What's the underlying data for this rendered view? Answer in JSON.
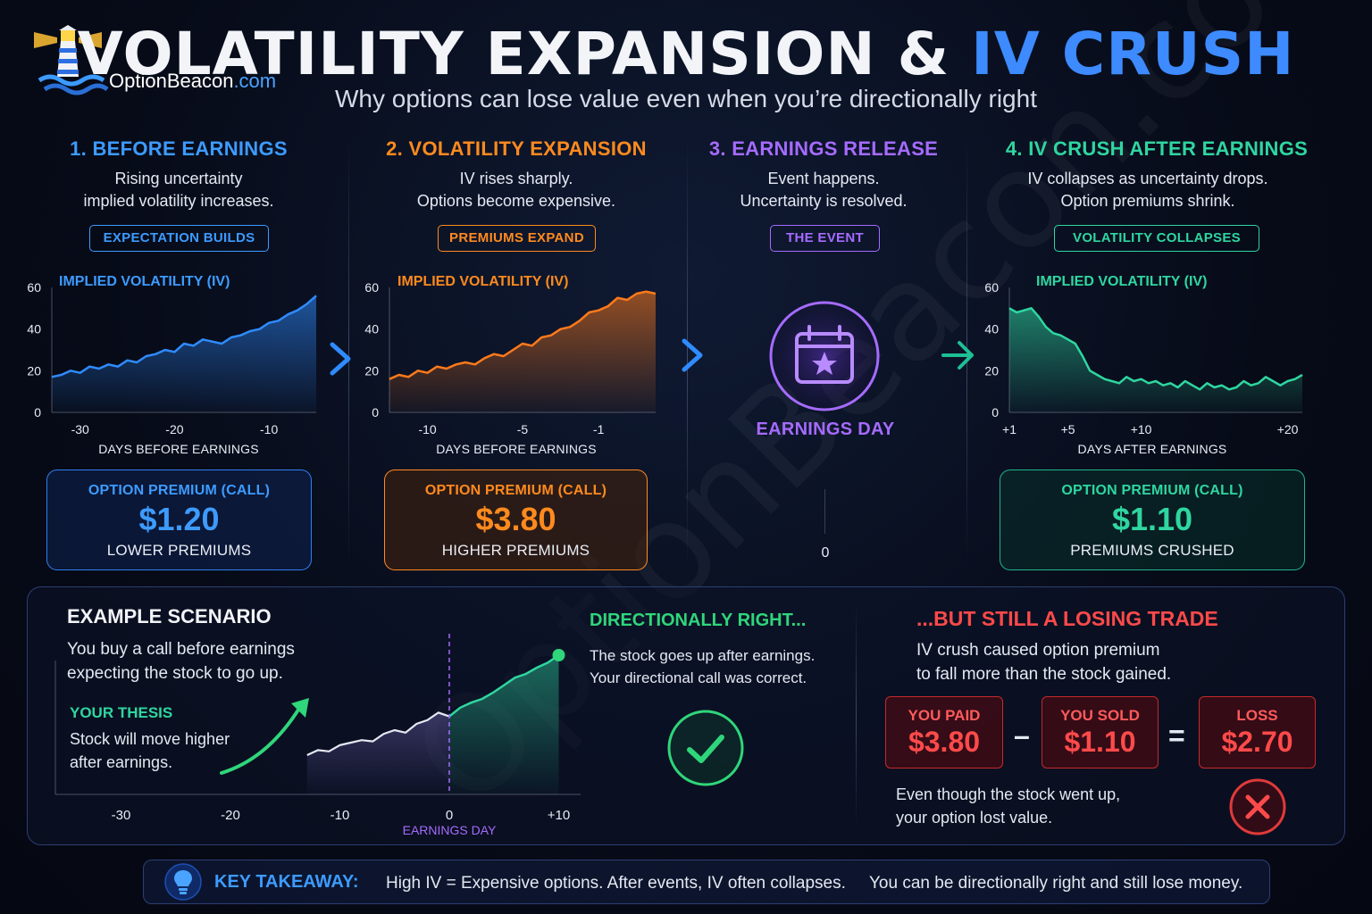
{
  "brand": {
    "name": "OptionBeacon",
    "tld": ".com",
    "watermark": "OptionBeacon.com"
  },
  "header": {
    "title_part1": "VOLATILITY EXPANSION & ",
    "title_part2": "IV CRUSH",
    "subtitle": "Why options can lose value even when you’re directionally right"
  },
  "colors": {
    "blue": "#3d9bff",
    "orange": "#ff8a1e",
    "purple": "#a56bff",
    "green": "#2fd6a0",
    "red": "#ff4a4a"
  },
  "steps": [
    {
      "title": "1. BEFORE EARNINGS",
      "desc_line1": "Rising uncertainty",
      "desc_line2": "implied volatility increases.",
      "pill": "EXPECTATION BUILDS",
      "chart_label": "IMPLIED VOLATILITY (IV)",
      "xlabel": "DAYS BEFORE EARNINGS",
      "card": {
        "label": "OPTION PREMIUM (CALL)",
        "value": "$1.20",
        "note": "LOWER PREMIUMS"
      }
    },
    {
      "title": "2. VOLATILITY EXPANSION",
      "desc_line1": "IV rises sharply.",
      "desc_line2": "Options become expensive.",
      "pill": "PREMIUMS EXPAND",
      "chart_label": "IMPLIED VOLATILITY (IV)",
      "xlabel": "DAYS BEFORE EARNINGS",
      "card": {
        "label": "OPTION PREMIUM (CALL)",
        "value": "$3.80",
        "note": "HIGHER PREMIUMS"
      }
    },
    {
      "title": "3. EARNINGS RELEASE",
      "desc_line1": "Event happens.",
      "desc_line2": "Uncertainty is resolved.",
      "pill": "THE EVENT",
      "event_label": "EARNINGS DAY",
      "zero_tick": "0"
    },
    {
      "title": "4. IV CRUSH AFTER EARNINGS",
      "desc_line1": "IV collapses as uncertainty drops.",
      "desc_line2": "Option premiums shrink.",
      "pill": "VOLATILITY COLLAPSES",
      "chart_label": "IMPLIED VOLATILITY (IV)",
      "xlabel": "DAYS AFTER EARNINGS",
      "card": {
        "label": "OPTION PREMIUM (CALL)",
        "value": "$1.10",
        "note": "PREMIUMS CRUSHED"
      }
    }
  ],
  "chart_data": [
    {
      "type": "area",
      "title": "IMPLIED VOLATILITY (IV)",
      "xlabel": "DAYS BEFORE EARNINGS",
      "xlim": [
        -33,
        -5
      ],
      "ylim": [
        0,
        60
      ],
      "yticks": [
        0,
        20,
        40,
        60
      ],
      "xticks": [
        -30,
        -20,
        -10
      ],
      "x": [
        -33,
        -32,
        -31,
        -30,
        -29,
        -28,
        -27,
        -26,
        -25,
        -24,
        -23,
        -22,
        -21,
        -20,
        -19,
        -18,
        -17,
        -16,
        -15,
        -14,
        -13,
        -12,
        -11,
        -10,
        -9,
        -8,
        -7,
        -6,
        -5
      ],
      "y": [
        17,
        18,
        20,
        19,
        22,
        21,
        23,
        22,
        25,
        24,
        27,
        28,
        30,
        29,
        33,
        32,
        35,
        34,
        33,
        36,
        37,
        39,
        40,
        43,
        44,
        47,
        49,
        52,
        56
      ]
    },
    {
      "type": "area",
      "title": "IMPLIED VOLATILITY (IV)",
      "xlabel": "DAYS BEFORE EARNINGS",
      "xlim": [
        -12,
        2
      ],
      "ylim": [
        0,
        60
      ],
      "yticks": [
        0,
        20,
        40,
        60
      ],
      "xticks": [
        -10,
        -5,
        -1
      ],
      "x": [
        -12,
        -11.5,
        -11,
        -10.5,
        -10,
        -9.5,
        -9,
        -8.5,
        -8,
        -7.5,
        -7,
        -6.5,
        -6,
        -5.5,
        -5,
        -4.5,
        -4,
        -3.5,
        -3,
        -2.5,
        -2,
        -1.5,
        -1,
        -0.5,
        0,
        0.5,
        1,
        1.5,
        2
      ],
      "y": [
        16,
        18,
        17,
        20,
        19,
        22,
        21,
        23,
        24,
        23,
        26,
        28,
        27,
        30,
        33,
        32,
        36,
        37,
        40,
        41,
        44,
        48,
        49,
        51,
        55,
        54,
        57,
        58,
        57
      ]
    },
    {
      "type": "area",
      "title": "IMPLIED VOLATILITY (IV)",
      "xlabel": "DAYS AFTER EARNINGS",
      "xlim": [
        1,
        21
      ],
      "ylim": [
        0,
        60
      ],
      "yticks": [
        0,
        20,
        40,
        60
      ],
      "xticks": [
        1,
        5,
        10,
        20
      ],
      "xtick_labels": [
        "+1",
        "+5",
        "+10",
        "+20"
      ],
      "x": [
        1,
        1.5,
        2,
        2.5,
        3,
        3.5,
        4,
        4.5,
        5,
        5.5,
        6,
        6.5,
        7,
        7.5,
        8,
        8.5,
        9,
        9.5,
        10,
        10.5,
        11,
        11.5,
        12,
        12.5,
        13,
        13.5,
        14,
        14.5,
        15,
        15.5,
        16,
        16.5,
        17,
        17.5,
        18,
        18.5,
        19,
        19.5,
        20,
        20.5,
        21
      ],
      "y": [
        50,
        48,
        49,
        50,
        46,
        41,
        38,
        37,
        35,
        33,
        27,
        20,
        18,
        16,
        15,
        14,
        17,
        15,
        16,
        14,
        15,
        13,
        14,
        12,
        15,
        13,
        11,
        14,
        12,
        13,
        11,
        12,
        15,
        13,
        14,
        17,
        15,
        13,
        15,
        16,
        18
      ]
    },
    {
      "type": "line",
      "title": "EXAMPLE SCENARIO",
      "xlim": [
        -36,
        12
      ],
      "xticks": [
        -30,
        -20,
        -10,
        0,
        10
      ],
      "xtick_labels": [
        "-30",
        "-20",
        "-10",
        "0",
        "+10"
      ],
      "marker_label": "EARNINGS DAY",
      "x": [
        -13,
        -12,
        -11,
        -10,
        -9,
        -8,
        -7,
        -6,
        -5,
        -4,
        -3,
        -2,
        -1,
        0,
        1,
        2,
        3,
        4,
        5,
        6,
        7,
        8,
        9,
        10
      ],
      "y": [
        10,
        14,
        13,
        18,
        20,
        22,
        21,
        27,
        30,
        28,
        35,
        38,
        44,
        41,
        48,
        52,
        55,
        60,
        66,
        72,
        75,
        80,
        84,
        90
      ]
    }
  ],
  "scenario": {
    "heading": "EXAMPLE SCENARIO",
    "intro_line1": "You buy a call before earnings",
    "intro_line2": "expecting the stock to go up.",
    "thesis_label": "YOUR THESIS",
    "thesis_line1": "Stock will move higher",
    "thesis_line2": "after earnings.",
    "right_heading": "DIRECTIONALLY RIGHT...",
    "right_line1": "The stock goes up after earnings.",
    "right_line2": "Your directional call was correct.",
    "loss_heading": "...BUT STILL A LOSING TRADE",
    "loss_line1": "IV crush caused option premium",
    "loss_line2": "to fall more than the stock gained.",
    "paid_label": "YOU PAID",
    "paid_value": "$3.80",
    "sold_label": "YOU SOLD",
    "sold_value": "$1.10",
    "loss_label": "LOSS",
    "loss_value": "$2.70",
    "minus": "–",
    "equals": "=",
    "footer_line1": "Even though the stock went up,",
    "footer_line2": "your option lost value."
  },
  "takeaway": {
    "label": "KEY TAKEAWAY:",
    "text1": "High IV = Expensive options. After events, IV often collapses.",
    "text2": "You can be directionally right and still lose money."
  }
}
